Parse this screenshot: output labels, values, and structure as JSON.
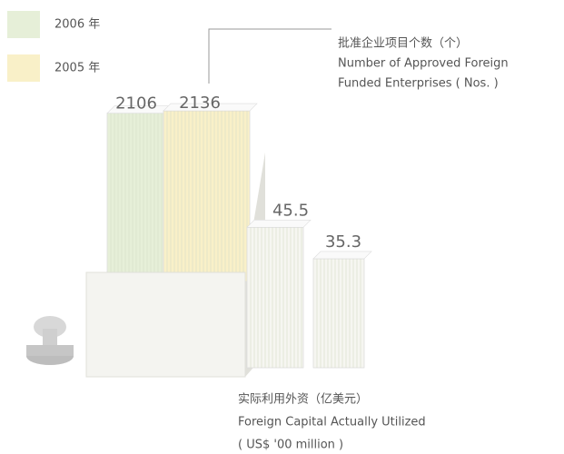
{
  "chart_data": [
    {
      "type": "bar",
      "title": "批准企业项目个数（个）",
      "subtitle": [
        "Number of Approved Foreign",
        "Funded Enterprises ( Nos. )"
      ],
      "series": [
        {
          "name": "2006 年",
          "color": "#e6efd8",
          "values": [
            2106
          ]
        },
        {
          "name": "2005 年",
          "color": "#f9f0c8",
          "values": [
            2136
          ]
        }
      ]
    },
    {
      "type": "bar",
      "title": "实际利用外资（亿美元）",
      "subtitle": [
        "Foreign Capital Actually Utilized",
        "( US$ '00 million )"
      ],
      "series": [
        {
          "color": "#f6f6f1",
          "values": [
            45.5
          ]
        },
        {
          "color": "#f6f6f1",
          "values": [
            35.3
          ]
        }
      ]
    }
  ]
}
